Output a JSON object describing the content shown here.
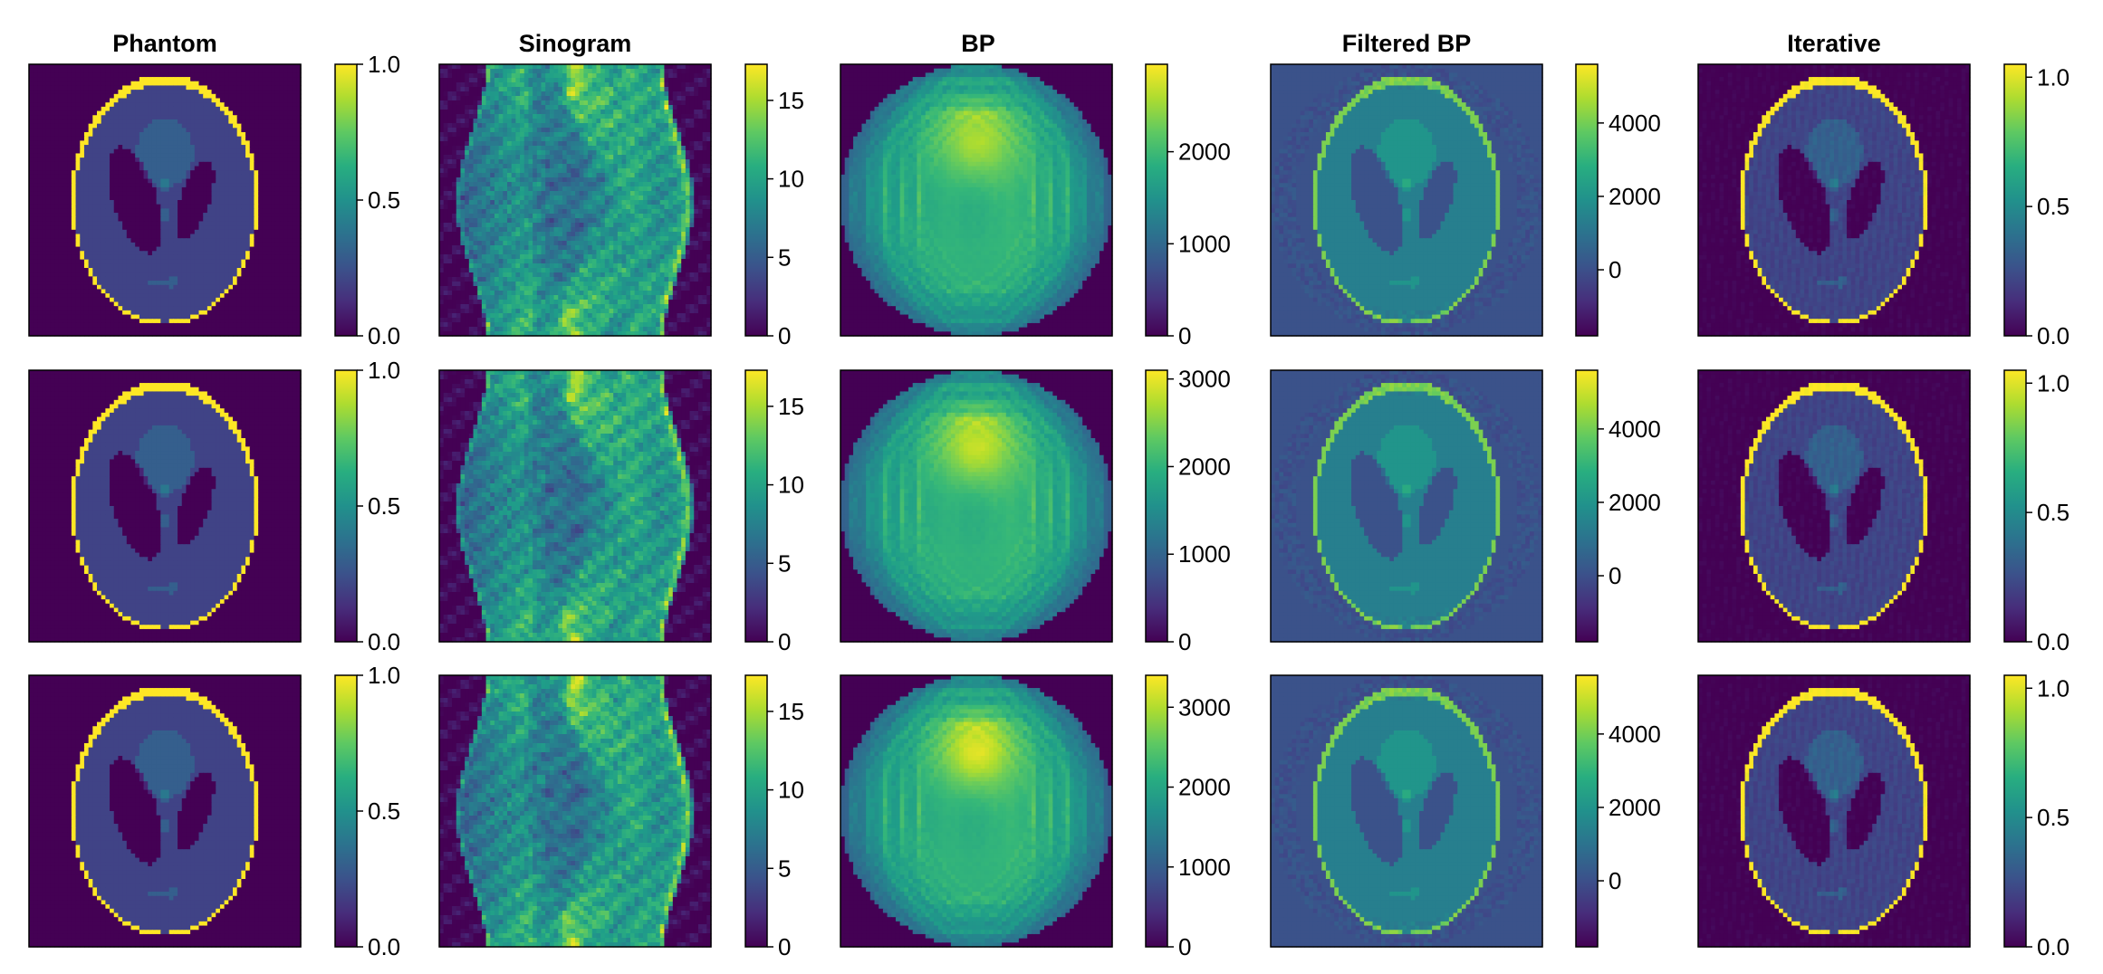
{
  "figure": {
    "column_titles": [
      "Phantom",
      "Sinogram",
      "BP",
      "Filtered BP",
      "Iterative"
    ]
  },
  "chart_data": [
    {
      "type": "heatmap",
      "title": "Phantom",
      "row": 0,
      "col": 0,
      "kind": "phantom",
      "colorbar": {
        "range": [
          0,
          1
        ],
        "ticks": [
          0.0,
          0.5,
          1.0
        ],
        "tick_labels": [
          "0.0",
          "0.5",
          "1.0"
        ]
      }
    },
    {
      "type": "heatmap",
      "title": "Sinogram",
      "row": 0,
      "col": 1,
      "kind": "sinogram",
      "colorbar": {
        "range": [
          0,
          17.3
        ],
        "ticks": [
          0,
          5,
          10,
          15
        ],
        "tick_labels": [
          "0",
          "5",
          "10",
          "15"
        ]
      }
    },
    {
      "type": "heatmap",
      "title": "BP",
      "row": 0,
      "col": 2,
      "kind": "bp",
      "colorbar": {
        "range": [
          0,
          2950
        ],
        "ticks": [
          0,
          1000,
          2000
        ],
        "tick_labels": [
          "0",
          "1000",
          "2000"
        ]
      }
    },
    {
      "type": "heatmap",
      "title": "Filtered BP",
      "row": 0,
      "col": 3,
      "kind": "fbp",
      "colorbar": {
        "range": [
          -1800,
          5600
        ],
        "ticks": [
          0,
          2000,
          4000
        ],
        "tick_labels": [
          "0",
          "2000",
          "4000"
        ]
      }
    },
    {
      "type": "heatmap",
      "title": "Iterative",
      "row": 0,
      "col": 4,
      "kind": "iterative",
      "colorbar": {
        "range": [
          0,
          1.05
        ],
        "ticks": [
          0.0,
          0.5,
          1.0
        ],
        "tick_labels": [
          "0.0",
          "0.5",
          "1.0"
        ]
      }
    },
    {
      "type": "heatmap",
      "row": 1,
      "col": 0,
      "kind": "phantom",
      "colorbar": {
        "range": [
          0,
          1
        ],
        "ticks": [
          0.0,
          0.5,
          1.0
        ],
        "tick_labels": [
          "0.0",
          "0.5",
          "1.0"
        ]
      }
    },
    {
      "type": "heatmap",
      "row": 1,
      "col": 1,
      "kind": "sinogram",
      "colorbar": {
        "range": [
          0,
          17.3
        ],
        "ticks": [
          0,
          5,
          10,
          15
        ],
        "tick_labels": [
          "0",
          "5",
          "10",
          "15"
        ]
      }
    },
    {
      "type": "heatmap",
      "row": 1,
      "col": 2,
      "kind": "bp",
      "colorbar": {
        "range": [
          0,
          3100
        ],
        "ticks": [
          0,
          1000,
          2000,
          3000
        ],
        "tick_labels": [
          "0",
          "1000",
          "2000",
          "3000"
        ]
      }
    },
    {
      "type": "heatmap",
      "row": 1,
      "col": 3,
      "kind": "fbp",
      "colorbar": {
        "range": [
          -1800,
          5600
        ],
        "ticks": [
          0,
          2000,
          4000
        ],
        "tick_labels": [
          "0",
          "2000",
          "4000"
        ]
      }
    },
    {
      "type": "heatmap",
      "row": 1,
      "col": 4,
      "kind": "iterative",
      "colorbar": {
        "range": [
          0,
          1.05
        ],
        "ticks": [
          0.0,
          0.5,
          1.0
        ],
        "tick_labels": [
          "0.0",
          "0.5",
          "1.0"
        ]
      }
    },
    {
      "type": "heatmap",
      "row": 2,
      "col": 0,
      "kind": "phantom",
      "colorbar": {
        "range": [
          0,
          1
        ],
        "ticks": [
          0.0,
          0.5,
          1.0
        ],
        "tick_labels": [
          "0.0",
          "0.5",
          "1.0"
        ]
      }
    },
    {
      "type": "heatmap",
      "row": 2,
      "col": 1,
      "kind": "sinogram",
      "colorbar": {
        "range": [
          0,
          17.3
        ],
        "ticks": [
          0,
          5,
          10,
          15
        ],
        "tick_labels": [
          "0",
          "5",
          "10",
          "15"
        ]
      }
    },
    {
      "type": "heatmap",
      "row": 2,
      "col": 2,
      "kind": "bp",
      "colorbar": {
        "range": [
          0,
          3400
        ],
        "ticks": [
          0,
          1000,
          2000,
          3000
        ],
        "tick_labels": [
          "0",
          "1000",
          "2000",
          "3000"
        ]
      }
    },
    {
      "type": "heatmap",
      "row": 2,
      "col": 3,
      "kind": "fbp",
      "colorbar": {
        "range": [
          -1800,
          5600
        ],
        "ticks": [
          0,
          2000,
          4000
        ],
        "tick_labels": [
          "0",
          "2000",
          "4000"
        ]
      }
    },
    {
      "type": "heatmap",
      "row": 2,
      "col": 4,
      "kind": "iterative",
      "colorbar": {
        "range": [
          0,
          1.05
        ],
        "ticks": [
          0.0,
          0.5,
          1.0
        ],
        "tick_labels": [
          "0.0",
          "0.5",
          "1.0"
        ]
      }
    }
  ]
}
